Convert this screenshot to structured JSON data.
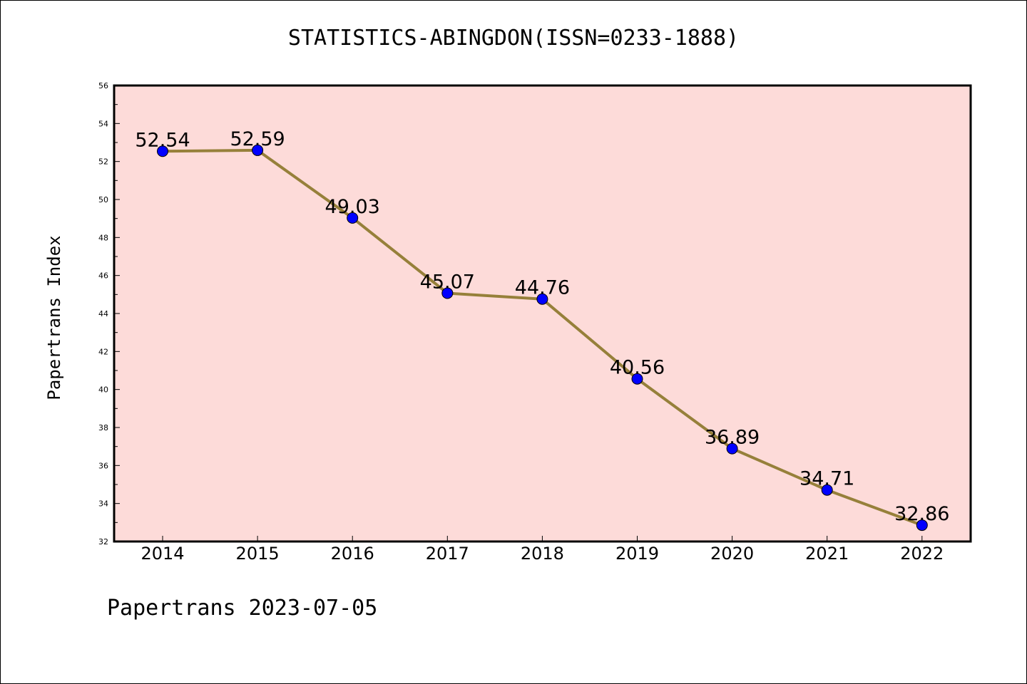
{
  "chart_data": {
    "type": "line",
    "title": "STATISTICS-ABINGDON(ISSN=0233-1888)",
    "ylabel": "Papertrans Index",
    "xlabel": "",
    "categories": [
      "2014",
      "2015",
      "2016",
      "2017",
      "2018",
      "2019",
      "2020",
      "2021",
      "2022"
    ],
    "series": [
      {
        "values": [
          52.54,
          52.59,
          49.03,
          45.07,
          44.76,
          40.56,
          36.89,
          34.71,
          32.86
        ],
        "labels": [
          "52.54",
          "52.59",
          "49.03",
          "45.07",
          "44.76",
          "40.56",
          "36.89",
          "34.71",
          "32.86"
        ]
      }
    ],
    "ylim": [
      32,
      56
    ],
    "yticks": [
      32,
      34,
      36,
      38,
      40,
      42,
      44,
      46,
      48,
      50,
      52,
      54,
      56
    ],
    "grid": false,
    "colors": {
      "plot_background": "#fddbd9",
      "line": "#96803a",
      "marker": "#0000ff"
    }
  },
  "footer": "Papertrans 2023-07-05"
}
